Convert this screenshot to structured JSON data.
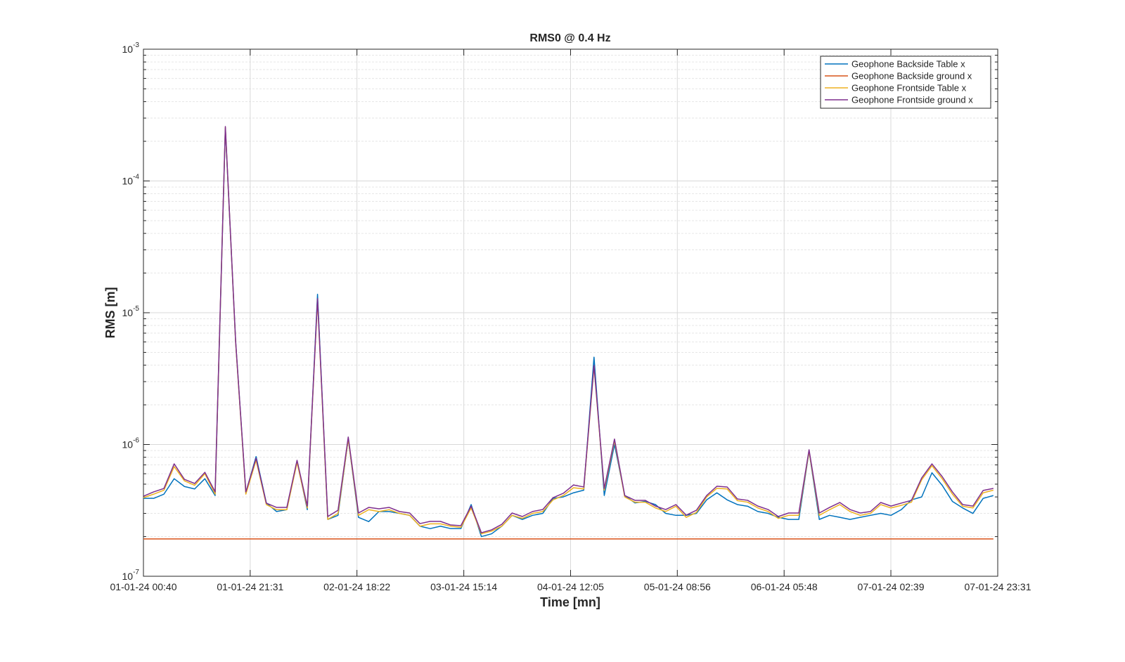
{
  "chart_data": {
    "type": "line",
    "title": "RMS0 @ 0.4 Hz",
    "xlabel": "Time [mn]",
    "ylabel": "RMS [m]",
    "yscale": "log",
    "grid": true,
    "legend_position": "northeast",
    "x": [
      0,
      2,
      4,
      6,
      8,
      10,
      12,
      14,
      16,
      18,
      20,
      22,
      24,
      26,
      28,
      30,
      32,
      34,
      36,
      38,
      40,
      42,
      44,
      46,
      48,
      50,
      52,
      54,
      56,
      58,
      60,
      62,
      64,
      66,
      68,
      70,
      72,
      74,
      76,
      78,
      80,
      82,
      84,
      86,
      88,
      90,
      92,
      94,
      96,
      98,
      100,
      102,
      104,
      106,
      108,
      110,
      112,
      114,
      116,
      118,
      120,
      122,
      124,
      126,
      128,
      130,
      132,
      134,
      136,
      138,
      140,
      142,
      144,
      146,
      148,
      150,
      152,
      154,
      156,
      158,
      160,
      162,
      164,
      166
    ],
    "xlim": [
      0,
      166.85
    ],
    "xticks": [
      {
        "value": 0,
        "label": "01-01-24 00:40"
      },
      {
        "value": 20.85,
        "label": "01-01-24 21:31"
      },
      {
        "value": 41.7,
        "label": "02-01-24 18:22"
      },
      {
        "value": 62.57,
        "label": "03-01-24 15:14"
      },
      {
        "value": 83.42,
        "label": "04-01-24 12:05"
      },
      {
        "value": 104.27,
        "label": "05-01-24 08:56"
      },
      {
        "value": 125.13,
        "label": "06-01-24 05:48"
      },
      {
        "value": 145.98,
        "label": "07-01-24 02:39"
      },
      {
        "value": 166.85,
        "label": "07-01-24 23:31"
      }
    ],
    "ylim": [
      1e-07,
      0.001
    ],
    "yticks": [
      {
        "value": 1e-07,
        "label": "10^{-7}"
      },
      {
        "value": 1e-06,
        "label": "10^{-6}"
      },
      {
        "value": 1e-05,
        "label": "10^{-5}"
      },
      {
        "value": 0.0001,
        "label": "10^{-4}"
      },
      {
        "value": 0.001,
        "label": "10^{-3}"
      }
    ],
    "series": [
      {
        "name": "Geophone Backside Table x",
        "color": "#0072bd",
        "values": [
          3.9e-07,
          3.9e-07,
          4.2e-07,
          5.5e-07,
          4.8e-07,
          4.6e-07,
          5.5e-07,
          4.1e-07,
          0.00025,
          6.1e-06,
          4.3e-07,
          8.1e-07,
          3.6e-07,
          3.1e-07,
          3.2e-07,
          7.5e-07,
          3.2e-07,
          1.38e-05,
          2.7e-07,
          2.9e-07,
          1.1e-06,
          2.8e-07,
          2.6e-07,
          3.1e-07,
          3.1e-07,
          3e-07,
          2.9e-07,
          2.4e-07,
          2.3e-07,
          2.4e-07,
          2.3e-07,
          2.3e-07,
          3.5e-07,
          2e-07,
          2.1e-07,
          2.4e-07,
          2.9e-07,
          2.7e-07,
          2.9e-07,
          3e-07,
          3.9e-07,
          4e-07,
          4.3e-07,
          4.5e-07,
          4.6e-06,
          4.1e-07,
          1e-06,
          4.1e-07,
          3.6e-07,
          3.7e-07,
          3.5e-07,
          3e-07,
          2.9e-07,
          2.9e-07,
          3e-07,
          3.8e-07,
          4.3e-07,
          3.8e-07,
          3.5e-07,
          3.4e-07,
          3.1e-07,
          3e-07,
          2.8e-07,
          2.7e-07,
          2.7e-07,
          8.9e-07,
          2.7e-07,
          2.9e-07,
          2.8e-07,
          2.7e-07,
          2.8e-07,
          2.9e-07,
          3e-07,
          2.9e-07,
          3.2e-07,
          3.8e-07,
          4e-07,
          6.1e-07,
          4.9e-07,
          3.7e-07,
          3.3e-07,
          3e-07,
          3.9e-07,
          4.1e-07
        ]
      },
      {
        "name": "Geophone Backside ground x",
        "color": "#d95319",
        "values": [
          1.92e-07,
          1.92e-07,
          1.92e-07,
          1.92e-07,
          1.92e-07,
          1.92e-07,
          1.92e-07,
          1.92e-07,
          1.92e-07,
          1.92e-07,
          1.92e-07,
          1.92e-07,
          1.92e-07,
          1.92e-07,
          1.92e-07,
          1.92e-07,
          1.92e-07,
          1.92e-07,
          1.92e-07,
          1.92e-07,
          1.92e-07,
          1.92e-07,
          1.92e-07,
          1.92e-07,
          1.92e-07,
          1.92e-07,
          1.92e-07,
          1.92e-07,
          1.92e-07,
          1.92e-07,
          1.92e-07,
          1.92e-07,
          1.92e-07,
          1.92e-07,
          1.92e-07,
          1.92e-07,
          1.92e-07,
          1.92e-07,
          1.92e-07,
          1.92e-07,
          1.92e-07,
          1.92e-07,
          1.92e-07,
          1.92e-07,
          1.92e-07,
          1.92e-07,
          1.92e-07,
          1.92e-07,
          1.92e-07,
          1.92e-07,
          1.92e-07,
          1.92e-07,
          1.92e-07,
          1.92e-07,
          1.92e-07,
          1.92e-07,
          1.92e-07,
          1.92e-07,
          1.92e-07,
          1.92e-07,
          1.92e-07,
          1.92e-07,
          1.92e-07,
          1.92e-07,
          1.92e-07,
          1.92e-07,
          1.92e-07,
          1.92e-07,
          1.92e-07,
          1.92e-07,
          1.92e-07,
          1.92e-07,
          1.92e-07,
          1.92e-07,
          1.92e-07,
          1.92e-07,
          1.92e-07,
          1.92e-07,
          1.92e-07,
          1.92e-07,
          1.92e-07,
          1.92e-07,
          1.92e-07,
          1.92e-07
        ]
      },
      {
        "name": "Geophone Frontside Table x",
        "color": "#edb120",
        "values": [
          3.95e-07,
          4.2e-07,
          4.5e-07,
          6.8e-07,
          5.3e-07,
          4.9e-07,
          6e-07,
          4.2e-07,
          0.000255,
          6e-06,
          4.2e-07,
          7.6e-07,
          3.5e-07,
          3.2e-07,
          3.2e-07,
          7.3e-07,
          3.3e-07,
          1.25e-05,
          2.7e-07,
          3e-07,
          1.1e-06,
          2.9e-07,
          3.2e-07,
          3.1e-07,
          3.2e-07,
          3e-07,
          2.9e-07,
          2.4e-07,
          2.5e-07,
          2.5e-07,
          2.4e-07,
          2.35e-07,
          3.3e-07,
          2.1e-07,
          2.2e-07,
          2.4e-07,
          2.9e-07,
          2.75e-07,
          3e-07,
          3.1e-07,
          3.8e-07,
          4.1e-07,
          4.7e-07,
          4.6e-07,
          3.9e-06,
          4.5e-07,
          1.07e-06,
          4e-07,
          3.65e-07,
          3.65e-07,
          3.3e-07,
          3.1e-07,
          3.4e-07,
          2.8e-07,
          3.05e-07,
          4e-07,
          4.65e-07,
          4.6e-07,
          3.75e-07,
          3.65e-07,
          3.3e-07,
          3.1e-07,
          2.75e-07,
          2.9e-07,
          2.9e-07,
          8.9e-07,
          2.9e-07,
          3.2e-07,
          3.5e-07,
          3.1e-07,
          2.9e-07,
          3e-07,
          3.5e-07,
          3.3e-07,
          3.45e-07,
          3.65e-07,
          5.4e-07,
          6.9e-07,
          5.5e-07,
          4.2e-07,
          3.4e-07,
          3.3e-07,
          4.3e-07,
          4.5e-07
        ]
      },
      {
        "name": "Geophone Frontside ground x",
        "color": "#7e2f8e",
        "values": [
          4.05e-07,
          4.37e-07,
          4.64e-07,
          7.13e-07,
          5.44e-07,
          5.06e-07,
          6.15e-07,
          4.37e-07,
          0.000259,
          6.12e-06,
          4.37e-07,
          7.87e-07,
          3.59e-07,
          3.33e-07,
          3.33e-07,
          7.59e-07,
          3.41e-07,
          1.28e-05,
          2.84e-07,
          3.17e-07,
          1.14e-06,
          3.02e-07,
          3.33e-07,
          3.25e-07,
          3.33e-07,
          3.1e-07,
          3.02e-07,
          2.51e-07,
          2.61e-07,
          2.61e-07,
          2.45e-07,
          2.42e-07,
          3.41e-07,
          2.14e-07,
          2.25e-07,
          2.48e-07,
          3.02e-07,
          2.84e-07,
          3.1e-07,
          3.21e-07,
          3.95e-07,
          4.26e-07,
          4.93e-07,
          4.76e-07,
          3.98e-06,
          4.64e-07,
          1.1e-06,
          4.1e-07,
          3.77e-07,
          3.77e-07,
          3.41e-07,
          3.21e-07,
          3.5e-07,
          2.91e-07,
          3.17e-07,
          4.1e-07,
          4.82e-07,
          4.76e-07,
          3.86e-07,
          3.77e-07,
          3.41e-07,
          3.21e-07,
          2.84e-07,
          3.02e-07,
          3.02e-07,
          9.12e-07,
          3.02e-07,
          3.33e-07,
          3.63e-07,
          3.21e-07,
          3.02e-07,
          3.1e-07,
          3.63e-07,
          3.41e-07,
          3.59e-07,
          3.77e-07,
          5.58e-07,
          7.13e-07,
          5.71e-07,
          4.37e-07,
          3.5e-07,
          3.41e-07,
          4.48e-07,
          4.64e-07
        ]
      }
    ]
  }
}
